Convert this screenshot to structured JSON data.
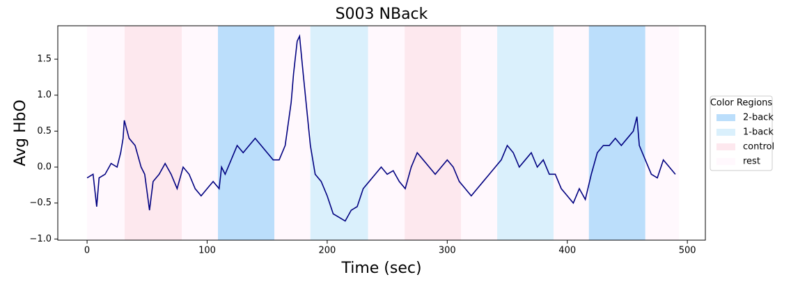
{
  "chart_data": {
    "type": "line",
    "title": "S003 NBack",
    "xlabel": "Time (sec)",
    "ylabel": "Avg HbO",
    "xlim": [
      -24.4,
      515
    ],
    "ylim": [
      -1.016,
      1.965
    ],
    "xticks": [
      0,
      100,
      200,
      300,
      400,
      500
    ],
    "yticks": [
      {
        "value": -1.0,
        "label": "−1.0"
      },
      {
        "value": -0.5,
        "label": "−0.5"
      },
      {
        "value": 0.0,
        "label": "0.0"
      },
      {
        "value": 0.5,
        "label": "0.5"
      },
      {
        "value": 1.0,
        "label": "1.0"
      },
      {
        "value": 1.5,
        "label": "1.5"
      }
    ],
    "legend": {
      "title": "Color Regions",
      "position": "right",
      "items": [
        {
          "label": "2-back",
          "color": "#bbdefb"
        },
        {
          "label": "1-back",
          "color": "#daf0fc"
        },
        {
          "label": "control",
          "color": "#fde8ee"
        },
        {
          "label": "rest",
          "color": "#fff8fd"
        }
      ]
    },
    "regions": [
      {
        "category": "rest",
        "start": 0,
        "end": 31.3
      },
      {
        "category": "control",
        "start": 31.3,
        "end": 78.9
      },
      {
        "category": "rest",
        "start": 78.9,
        "end": 109
      },
      {
        "category": "2-back",
        "start": 109,
        "end": 156
      },
      {
        "category": "rest",
        "start": 156,
        "end": 186
      },
      {
        "category": "1-back",
        "start": 186,
        "end": 234
      },
      {
        "category": "rest",
        "start": 234,
        "end": 264.5
      },
      {
        "category": "control",
        "start": 264.5,
        "end": 311.5
      },
      {
        "category": "rest",
        "start": 311.5,
        "end": 341.6
      },
      {
        "category": "1-back",
        "start": 341.6,
        "end": 388.6
      },
      {
        "category": "rest",
        "start": 388.6,
        "end": 418
      },
      {
        "category": "2-back",
        "start": 418,
        "end": 465
      },
      {
        "category": "rest",
        "start": 465,
        "end": 493
      }
    ],
    "x": [
      0,
      5,
      8,
      10,
      15,
      20,
      25,
      28,
      30,
      31,
      35,
      40,
      45,
      48,
      50,
      52,
      55,
      60,
      65,
      70,
      75,
      80,
      85,
      90,
      95,
      100,
      105,
      110,
      112,
      115,
      120,
      125,
      130,
      135,
      140,
      145,
      150,
      155,
      160,
      165,
      170,
      172,
      175,
      177,
      180,
      183,
      186,
      190,
      195,
      200,
      205,
      210,
      215,
      220,
      225,
      230,
      235,
      240,
      245,
      250,
      255,
      260,
      265,
      270,
      275,
      280,
      285,
      290,
      295,
      300,
      305,
      310,
      315,
      320,
      325,
      330,
      335,
      340,
      345,
      350,
      355,
      360,
      365,
      370,
      375,
      380,
      385,
      390,
      395,
      400,
      405,
      410,
      415,
      420,
      425,
      430,
      435,
      440,
      445,
      450,
      455,
      458,
      460,
      465,
      470,
      475,
      480,
      485,
      490
    ],
    "series": [
      {
        "color": "#000080",
        "values": [
          -0.15,
          -0.1,
          -0.55,
          -0.15,
          -0.1,
          0.05,
          0.0,
          0.2,
          0.4,
          0.65,
          0.4,
          0.3,
          0.0,
          -0.1,
          -0.35,
          -0.6,
          -0.2,
          -0.1,
          0.05,
          -0.1,
          -0.3,
          0.0,
          -0.1,
          -0.3,
          -0.4,
          -0.3,
          -0.2,
          -0.3,
          0.0,
          -0.1,
          0.1,
          0.3,
          0.2,
          0.3,
          0.4,
          0.3,
          0.2,
          0.1,
          0.1,
          0.3,
          0.9,
          1.3,
          1.75,
          1.82,
          1.3,
          0.8,
          0.3,
          -0.1,
          -0.2,
          -0.4,
          -0.65,
          -0.7,
          -0.75,
          -0.6,
          -0.55,
          -0.3,
          -0.2,
          -0.1,
          0.0,
          -0.1,
          -0.05,
          -0.2,
          -0.3,
          0.0,
          0.2,
          0.1,
          0.0,
          -0.1,
          0.0,
          0.1,
          0.0,
          -0.2,
          -0.3,
          -0.4,
          -0.3,
          -0.2,
          -0.1,
          0.0,
          0.1,
          0.3,
          0.2,
          0.0,
          0.1,
          0.2,
          0.0,
          0.1,
          -0.1,
          -0.1,
          -0.3,
          -0.4,
          -0.5,
          -0.3,
          -0.45,
          -0.1,
          0.2,
          0.3,
          0.3,
          0.4,
          0.3,
          0.4,
          0.5,
          0.7,
          0.3,
          0.1,
          -0.1,
          -0.15,
          0.1,
          0.0,
          -0.1
        ]
      }
    ]
  }
}
